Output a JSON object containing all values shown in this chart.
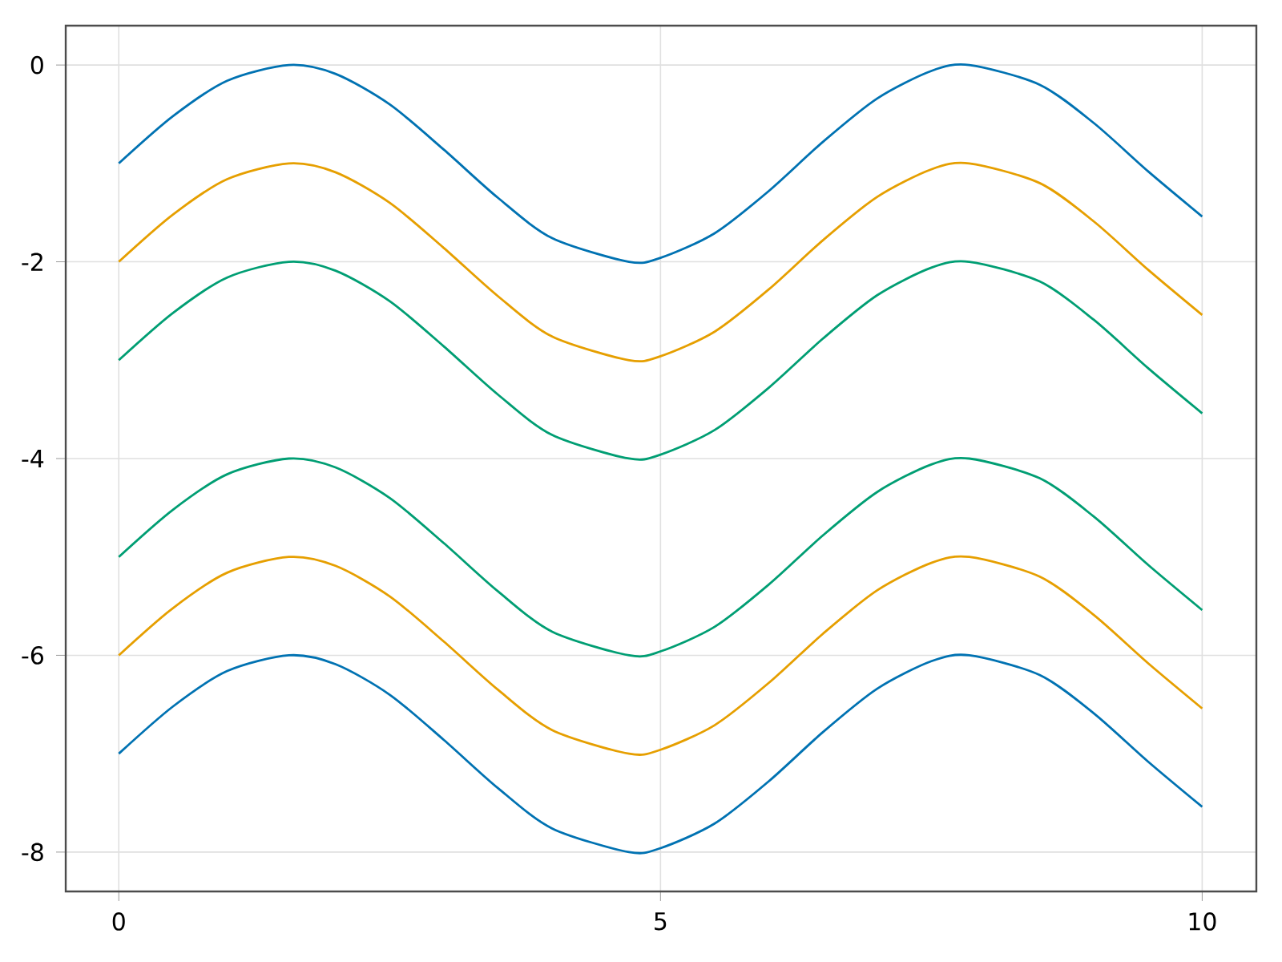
{
  "chart_data": {
    "type": "line",
    "x": [
      0,
      0.5,
      1,
      1.57,
      2,
      2.5,
      3,
      3.5,
      4,
      4.71,
      5,
      5.5,
      6,
      6.5,
      7,
      7.5,
      7.85,
      8.5,
      9,
      9.5,
      10
    ],
    "series": [
      {
        "color": "#0072b2",
        "values": [
          -1,
          -0.52,
          -0.16,
          0,
          -0.09,
          -0.4,
          -0.86,
          -1.35,
          -1.76,
          -2,
          -1.96,
          -1.71,
          -1.28,
          -0.78,
          -0.34,
          -0.06,
          0,
          -0.2,
          -0.59,
          -1.08,
          -1.54
        ]
      },
      {
        "color": "#e69f00",
        "values": [
          -2,
          -1.52,
          -1.16,
          -1,
          -1.09,
          -1.4,
          -1.86,
          -2.35,
          -2.76,
          -3,
          -2.96,
          -2.71,
          -2.28,
          -1.78,
          -1.34,
          -1.06,
          -1,
          -1.2,
          -1.59,
          -2.08,
          -2.54
        ]
      },
      {
        "color": "#009e73",
        "values": [
          -3,
          -2.52,
          -2.16,
          -2,
          -2.09,
          -2.4,
          -2.86,
          -3.35,
          -3.76,
          -4,
          -3.96,
          -3.71,
          -3.28,
          -2.78,
          -2.34,
          -2.06,
          -2,
          -2.2,
          -2.59,
          -3.08,
          -3.54
        ]
      },
      {
        "color": "#009e73",
        "values": [
          -5,
          -4.52,
          -4.16,
          -4,
          -4.09,
          -4.4,
          -4.86,
          -5.35,
          -5.76,
          -6,
          -5.96,
          -5.71,
          -5.28,
          -4.78,
          -4.34,
          -4.06,
          -4,
          -4.2,
          -4.59,
          -5.08,
          -5.54
        ]
      },
      {
        "color": "#e69f00",
        "values": [
          -6,
          -5.52,
          -5.16,
          -5,
          -5.09,
          -5.4,
          -5.86,
          -6.35,
          -6.76,
          -7,
          -6.96,
          -6.71,
          -6.28,
          -5.78,
          -5.34,
          -5.06,
          -5,
          -5.2,
          -5.59,
          -6.08,
          -6.54
        ]
      },
      {
        "color": "#0072b2",
        "values": [
          -7,
          -6.52,
          -6.16,
          -6,
          -6.09,
          -6.4,
          -6.86,
          -7.35,
          -7.76,
          -8,
          -7.96,
          -7.71,
          -7.28,
          -6.78,
          -6.34,
          -6.06,
          -6,
          -6.2,
          -6.59,
          -7.08,
          -7.54
        ]
      }
    ],
    "xlim": [
      -0.49,
      10.5
    ],
    "ylim": [
      -8.4,
      0.4
    ],
    "xticks": [
      0,
      5,
      10
    ],
    "yticks": [
      0,
      -2,
      -4,
      -6,
      -8
    ],
    "grid": true,
    "marker": "none",
    "line_style": "solid"
  }
}
